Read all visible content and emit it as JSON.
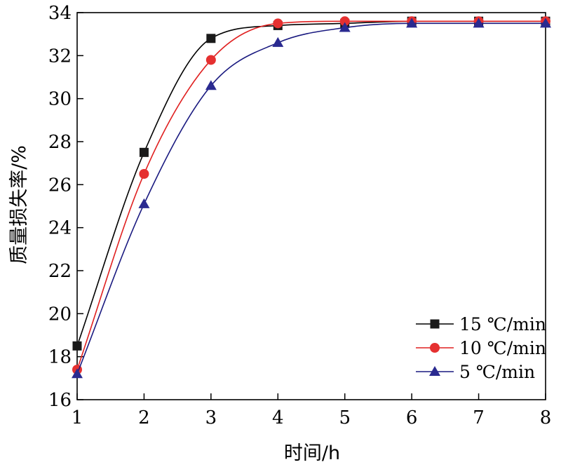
{
  "chart_data": {
    "type": "line",
    "xlabel": "时间/h",
    "ylabel": "质量损失率/%",
    "xlim": [
      1,
      8
    ],
    "ylim": [
      16,
      34
    ],
    "x_ticks": [
      "1",
      "2",
      "3",
      "4",
      "5",
      "6",
      "7",
      "8"
    ],
    "y_ticks": [
      "16",
      "18",
      "20",
      "22",
      "24",
      "26",
      "28",
      "30",
      "32",
      "34"
    ],
    "grid": false,
    "legend_position": "bottom-right",
    "x": [
      1,
      2,
      3,
      4,
      5,
      6,
      7,
      8
    ],
    "series": [
      {
        "name": "15 ℃/min",
        "marker": "square",
        "color": "#000000",
        "marker_color": "#1a1a1a",
        "values": [
          18.5,
          27.5,
          32.8,
          33.4,
          33.5,
          33.6,
          33.6,
          33.6
        ]
      },
      {
        "name": "10 ℃/min",
        "marker": "circle",
        "color": "#e02020",
        "marker_color": "#e53030",
        "values": [
          17.4,
          26.5,
          31.8,
          33.5,
          33.6,
          33.6,
          33.6,
          33.6
        ]
      },
      {
        "name": "5 ℃/min",
        "marker": "triangle",
        "color": "#1a1a80",
        "marker_color": "#2a2a90",
        "values": [
          17.2,
          25.1,
          30.6,
          32.6,
          33.3,
          33.5,
          33.5,
          33.5
        ]
      }
    ]
  }
}
